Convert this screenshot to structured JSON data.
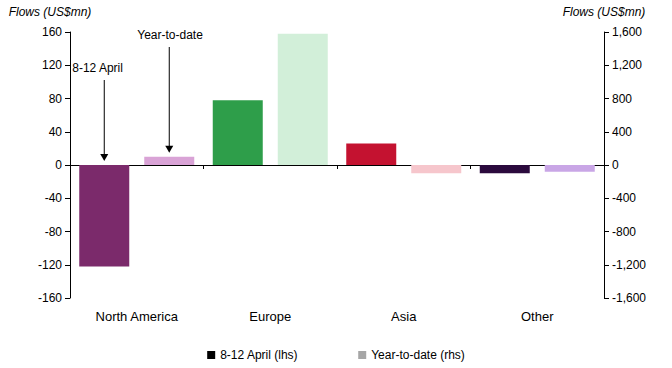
{
  "chart_data": {
    "type": "bar",
    "categories": [
      "North America",
      "Europe",
      "Asia",
      "Other"
    ],
    "series": [
      {
        "name": "8-12 April (lhs)",
        "color": "#000000",
        "colors": [
          "#7b2a6b",
          "#2e9e4a",
          "#c41230",
          "#2b0a3d"
        ],
        "values": [
          -122,
          78,
          26,
          -10
        ]
      },
      {
        "name": "Year-to-date (rhs)",
        "color": "#a6a6a6",
        "axis": "y2",
        "colors": [
          "#d9a3d6",
          "#d2efd9",
          "#f6c6cc",
          "#c9a6e6"
        ],
        "values": [
          100,
          1580,
          -100,
          -80
        ]
      }
    ],
    "ylabel": "Flows (US$mn)",
    "y2label": "Flows (US$mn)",
    "ylim": [
      -160,
      160
    ],
    "yticks": [
      -160,
      -120,
      -80,
      -40,
      0,
      40,
      80,
      120,
      160
    ],
    "y2lim": [
      -1600,
      1600
    ],
    "y2ticks": [
      {
        "value": -1600,
        "label": "-1,600"
      },
      {
        "value": -1200,
        "label": "-1,200"
      },
      -800,
      -400,
      0,
      400,
      800,
      {
        "value": 1200,
        "label": "1,200"
      },
      {
        "value": 1600,
        "label": "1,600"
      }
    ],
    "grid": false,
    "legend": "bottom",
    "annotations": [
      {
        "text": "8-12 April",
        "series": "8-12 April (lhs)",
        "category": "North America"
      },
      {
        "text": "Year-to-date",
        "series": "Year-to-date (rhs)",
        "category": "North America"
      }
    ]
  }
}
